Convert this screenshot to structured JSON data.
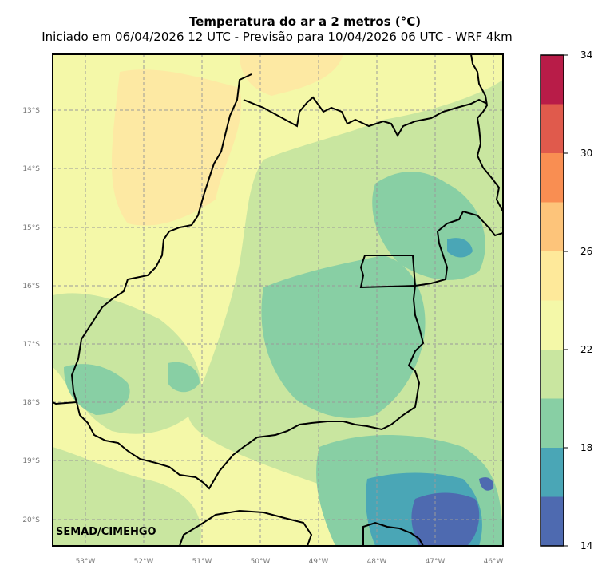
{
  "title": "Temperatura do ar a 2 metros (°C)",
  "subtitle": "Iniciado em 06/04/2026 12 UTC - Previsão para 10/04/2026 06 UTC - WRF 4km",
  "credit": "SEMAD/CIMEHGO",
  "lon_labels": [
    "53°W",
    "52°W",
    "51°W",
    "50°W",
    "49°W",
    "48°W",
    "47°W",
    "46°W"
  ],
  "lat_labels": [
    "13°S",
    "14°S",
    "15°S",
    "16°S",
    "17°S",
    "18°S",
    "19°S",
    "20°S"
  ],
  "colorbar": {
    "ticks": [
      "34",
      "30",
      "26",
      "22",
      "18",
      "14"
    ],
    "colors": [
      "#b81c48",
      "#e05a4c",
      "#f98e52",
      "#fdc47a",
      "#fee99a",
      "#f4f8a8",
      "#c9e6a0",
      "#88cfa4",
      "#4aa6b6",
      "#4e6ab0"
    ]
  }
}
